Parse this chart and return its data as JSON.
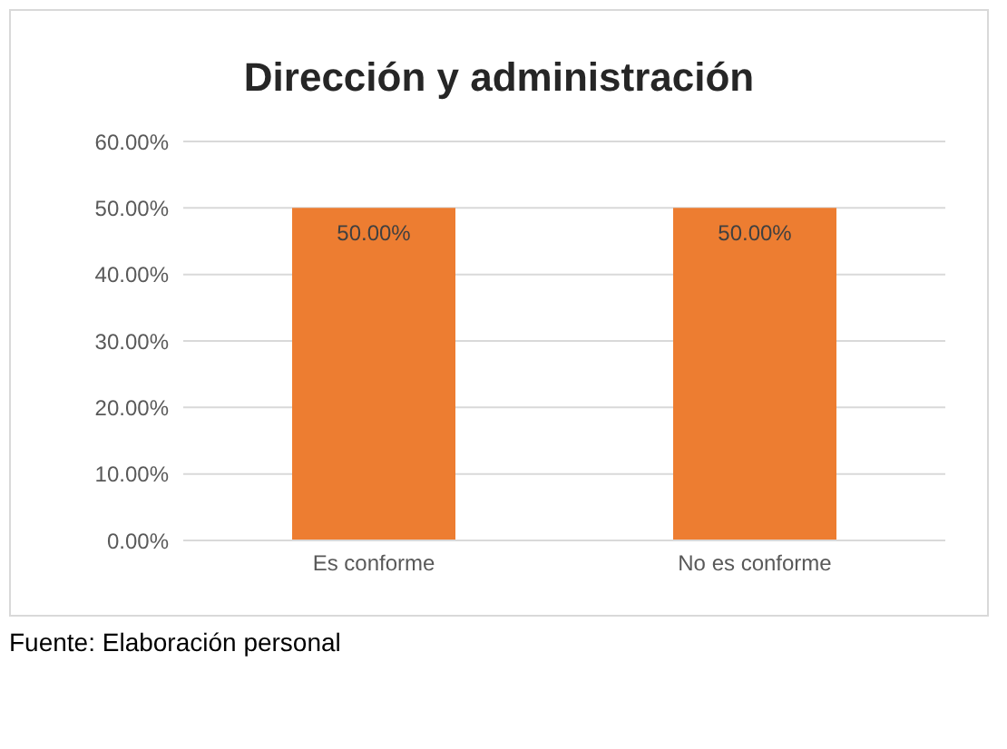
{
  "chart_data": {
    "type": "bar",
    "title": "Dirección y administración",
    "categories": [
      "Es conforme",
      "No es conforme"
    ],
    "values": [
      50,
      50
    ],
    "color": "#ed7d31",
    "value_labels": [
      "50.00%",
      "50.00%"
    ],
    "ylim": [
      0,
      60
    ],
    "yticks": [
      {
        "value": 0,
        "label": "0.00%"
      },
      {
        "value": 10,
        "label": "10.00%"
      },
      {
        "value": 20,
        "label": "20.00%"
      },
      {
        "value": 30,
        "label": "30.00%"
      },
      {
        "value": 40,
        "label": "40.00%"
      },
      {
        "value": 50,
        "label": "50.00%"
      },
      {
        "value": 60,
        "label": "60.00%"
      }
    ],
    "grid": "y",
    "annotations": [
      "Fuente: Elaboración personal"
    ]
  }
}
